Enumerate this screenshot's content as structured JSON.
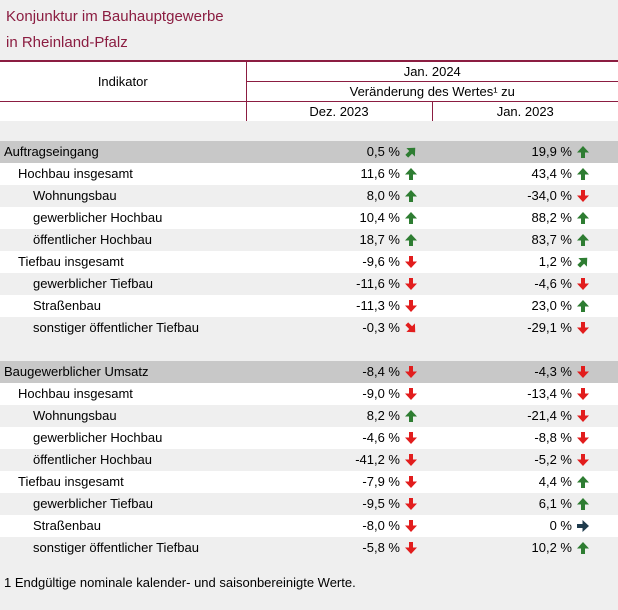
{
  "title": {
    "line1": "Konjunktur im Bauhauptgewerbe",
    "line2": "in Rheinland-Pfalz"
  },
  "header": {
    "indicator": "Indikator",
    "period": "Jan. 2024",
    "change": "Veränderung des Wertes¹ zu",
    "col1": "Dez. 2023",
    "col2": "Jan. 2023"
  },
  "rows": [
    {
      "label": "Auftragseingang",
      "level": 0,
      "section": true,
      "v1": "0,5 %",
      "a1": "up-right",
      "v2": "19,9 %",
      "a2": "up"
    },
    {
      "label": "Hochbau insgesamt",
      "level": 1,
      "v1": "11,6 %",
      "a1": "up",
      "v2": "43,4 %",
      "a2": "up"
    },
    {
      "label": "Wohnungsbau",
      "level": 2,
      "v1": "8,0 %",
      "a1": "up",
      "v2": "-34,0 %",
      "a2": "down"
    },
    {
      "label": "gewerblicher Hochbau",
      "level": 2,
      "v1": "10,4 %",
      "a1": "up",
      "v2": "88,2 %",
      "a2": "up"
    },
    {
      "label": "öffentlicher Hochbau",
      "level": 2,
      "v1": "18,7 %",
      "a1": "up",
      "v2": "83,7 %",
      "a2": "up"
    },
    {
      "label": "Tiefbau insgesamt",
      "level": 1,
      "v1": "-9,6 %",
      "a1": "down",
      "v2": "1,2 %",
      "a2": "up-right"
    },
    {
      "label": "gewerblicher Tiefbau",
      "level": 2,
      "v1": "-11,6 %",
      "a1": "down",
      "v2": "-4,6 %",
      "a2": "down"
    },
    {
      "label": "Straßenbau",
      "level": 2,
      "v1": "-11,3 %",
      "a1": "down",
      "v2": "23,0 %",
      "a2": "up"
    },
    {
      "label": "sonstiger öffentlicher Tiefbau",
      "level": 2,
      "v1": "-0,3 %",
      "a1": "down-right",
      "v2": "-29,1 %",
      "a2": "down"
    },
    {
      "label": "Baugewerblicher Umsatz",
      "level": 0,
      "section": true,
      "v1": "-8,4 %",
      "a1": "down",
      "v2": "-4,3 %",
      "a2": "down"
    },
    {
      "label": "Hochbau insgesamt",
      "level": 1,
      "v1": "-9,0 %",
      "a1": "down",
      "v2": "-13,4 %",
      "a2": "down"
    },
    {
      "label": "Wohnungsbau",
      "level": 2,
      "v1": "8,2 %",
      "a1": "up",
      "v2": "-21,4 %",
      "a2": "down"
    },
    {
      "label": "gewerblicher Hochbau",
      "level": 2,
      "v1": "-4,6 %",
      "a1": "down",
      "v2": "-8,8 %",
      "a2": "down"
    },
    {
      "label": "öffentlicher Hochbau",
      "level": 2,
      "v1": "-41,2 %",
      "a1": "down",
      "v2": "-5,2 %",
      "a2": "down"
    },
    {
      "label": "Tiefbau insgesamt",
      "level": 1,
      "v1": "-7,9 %",
      "a1": "down",
      "v2": "4,4 %",
      "a2": "up"
    },
    {
      "label": "gewerblicher Tiefbau",
      "level": 2,
      "v1": "-9,5 %",
      "a1": "down",
      "v2": "6,1 %",
      "a2": "up"
    },
    {
      "label": "Straßenbau",
      "level": 2,
      "v1": "-8,0 %",
      "a1": "down",
      "v2": "0 %",
      "a2": "right"
    },
    {
      "label": "sonstiger öffentlicher Tiefbau",
      "level": 2,
      "v1": "-5,8 %",
      "a1": "down",
      "v2": "10,2 %",
      "a2": "up"
    }
  ],
  "footnote": "1 Endgültige nominale kalender- und saisonbereinigte Werte.",
  "colors": {
    "accent": "#8b1d41",
    "up": "#2e7d32",
    "down": "#e21d1d",
    "neutral": "#1f3b4d",
    "section_bg": "#c8c8c8"
  }
}
